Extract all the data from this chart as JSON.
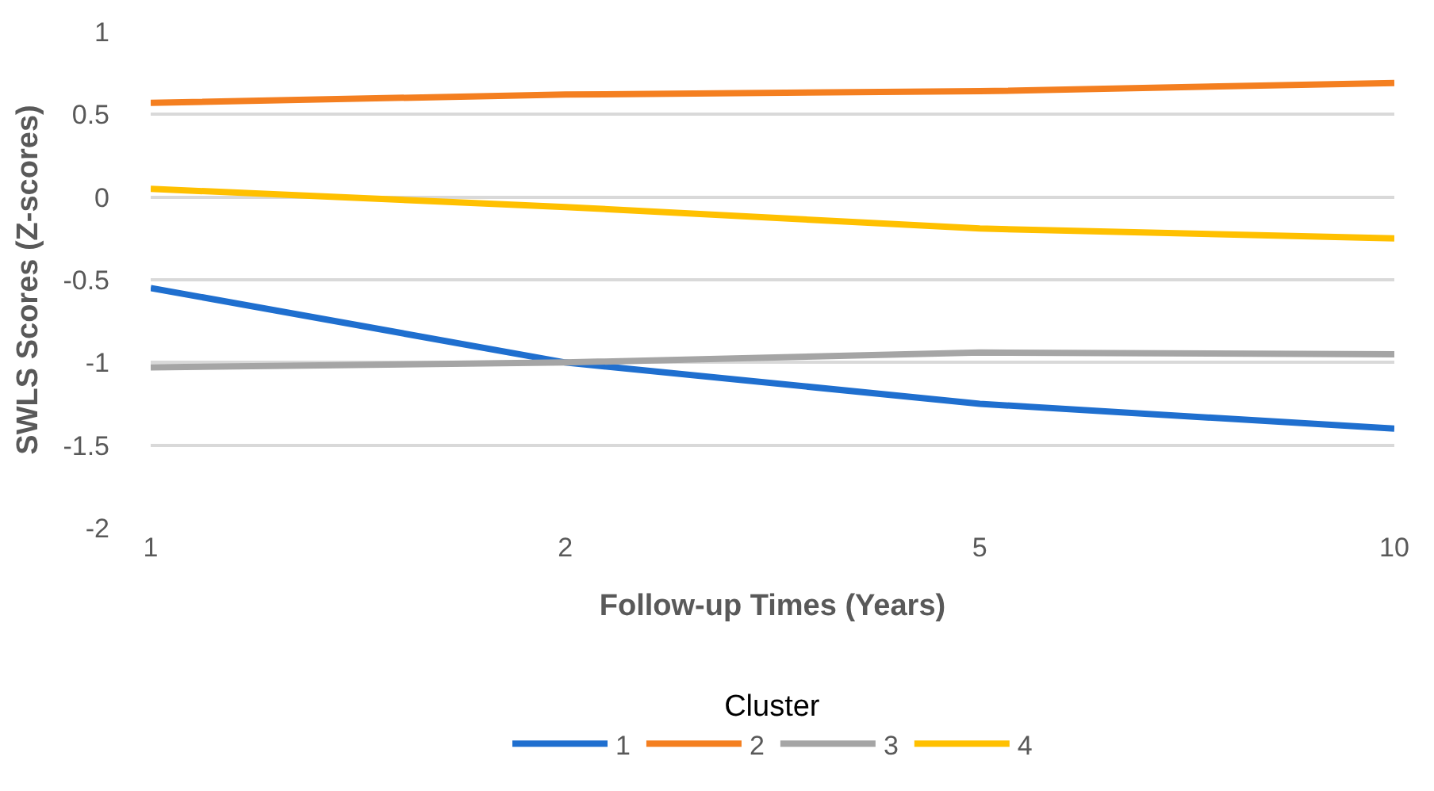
{
  "chart_data": {
    "type": "line",
    "xlabel": "Follow-up Times (Years)",
    "ylabel": "SWLS Scores (Z-scores)",
    "legend_title": "Cluster",
    "legend": "bottom",
    "grid": "y",
    "marker": "none",
    "line_style": "solid",
    "categories": [
      "1",
      "2",
      "5",
      "10"
    ],
    "ylim": [
      -2,
      1
    ],
    "yticks": [
      -2,
      -1.5,
      -1,
      -0.5,
      0,
      0.5,
      1
    ],
    "series": [
      {
        "name": "1",
        "color": "#1f6fcf",
        "values": [
          -0.55,
          -1.0,
          -1.25,
          -1.4
        ]
      },
      {
        "name": "2",
        "color": "#f47f20",
        "values": [
          0.57,
          0.62,
          0.64,
          0.69
        ]
      },
      {
        "name": "3",
        "color": "#a5a5a5",
        "values": [
          -1.03,
          -1.0,
          -0.94,
          -0.95
        ]
      },
      {
        "name": "4",
        "color": "#ffc000",
        "values": [
          0.05,
          -0.06,
          -0.19,
          -0.25
        ]
      }
    ]
  }
}
